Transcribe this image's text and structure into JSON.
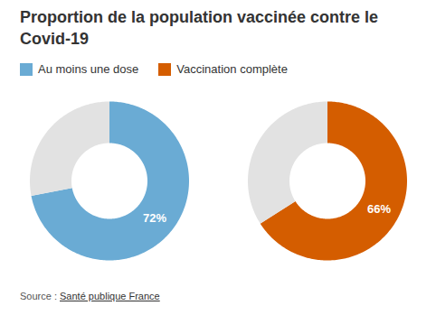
{
  "title": "Proportion de la population vaccinée contre le Covid-19",
  "source_label": "Source :",
  "source": "Santé publique France",
  "chart_data": [
    {
      "type": "pie",
      "legend": "top-left",
      "data_labels": true,
      "total": 100,
      "series": [
        {
          "name": "Au moins une dose",
          "color": "#6aabd4",
          "values": [
            72
          ],
          "value_labels": [
            "72%"
          ]
        }
      ]
    },
    {
      "type": "pie",
      "legend": "top-left",
      "data_labels": true,
      "total": 100,
      "series": [
        {
          "name": "Vaccination complète",
          "color": "#d45d00",
          "values": [
            66
          ],
          "value_labels": [
            "66%"
          ]
        }
      ]
    }
  ]
}
